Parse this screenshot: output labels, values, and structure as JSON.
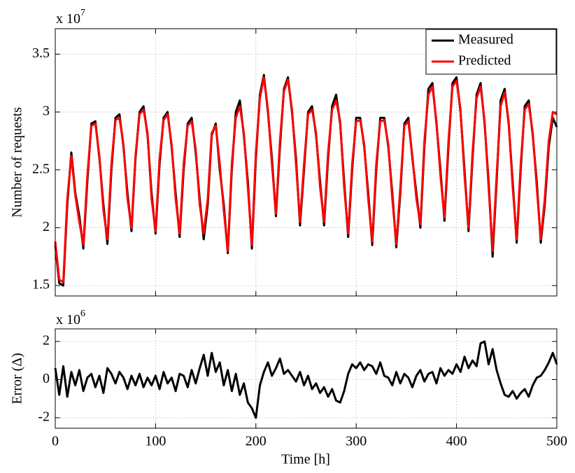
{
  "chart_data": [
    {
      "type": "line",
      "y_label": "Number of requests",
      "y_multiplier": {
        "base": "x 10",
        "exponent": "7"
      },
      "x": [
        0,
        4,
        8,
        12,
        16,
        20,
        24,
        28,
        32,
        36,
        40,
        44,
        48,
        52,
        56,
        60,
        64,
        68,
        72,
        76,
        80,
        84,
        88,
        92,
        96,
        100,
        104,
        108,
        112,
        116,
        120,
        124,
        128,
        132,
        136,
        140,
        144,
        148,
        152,
        156,
        160,
        164,
        168,
        172,
        176,
        180,
        184,
        188,
        192,
        196,
        200,
        204,
        208,
        212,
        216,
        220,
        224,
        228,
        232,
        236,
        240,
        244,
        248,
        252,
        256,
        260,
        264,
        268,
        272,
        276,
        280,
        284,
        288,
        292,
        296,
        300,
        304,
        308,
        312,
        316,
        320,
        324,
        328,
        332,
        336,
        340,
        344,
        348,
        352,
        356,
        360,
        364,
        368,
        372,
        376,
        380,
        384,
        388,
        392,
        396,
        400,
        404,
        408,
        412,
        416,
        420,
        424,
        428,
        432,
        436,
        440,
        444,
        448,
        452,
        456,
        460,
        464,
        468,
        472,
        476,
        480,
        484,
        488,
        492,
        496,
        500
      ],
      "series": [
        {
          "name": "Measured",
          "color": "#000000",
          "values": [
            1.85,
            1.52,
            1.5,
            2.2,
            2.65,
            2.3,
            2.1,
            1.82,
            2.4,
            2.9,
            2.92,
            2.6,
            2.2,
            1.86,
            2.5,
            2.95,
            2.98,
            2.7,
            2.3,
            1.97,
            2.6,
            3.0,
            3.05,
            2.8,
            2.3,
            1.95,
            2.55,
            2.95,
            3.0,
            2.7,
            2.3,
            1.92,
            2.5,
            2.9,
            2.95,
            2.65,
            2.25,
            1.9,
            2.2,
            2.8,
            2.9,
            2.5,
            2.2,
            1.78,
            2.5,
            3.0,
            3.1,
            2.8,
            2.4,
            1.82,
            2.6,
            3.15,
            3.32,
            3.0,
            2.6,
            2.1,
            2.7,
            3.2,
            3.3,
            3.0,
            2.6,
            2.02,
            2.5,
            3.0,
            3.05,
            2.8,
            2.4,
            2.02,
            2.6,
            3.05,
            3.15,
            2.9,
            2.4,
            1.92,
            2.5,
            2.95,
            2.95,
            2.7,
            2.3,
            1.85,
            2.5,
            2.95,
            2.95,
            2.7,
            2.3,
            1.83,
            2.3,
            2.9,
            2.95,
            2.6,
            2.3,
            2.0,
            2.7,
            3.2,
            3.25,
            2.9,
            2.5,
            2.06,
            2.7,
            3.25,
            3.3,
            3.0,
            2.5,
            1.97,
            2.6,
            3.15,
            3.25,
            2.9,
            2.4,
            1.75,
            2.4,
            3.1,
            3.2,
            2.9,
            2.4,
            1.87,
            2.5,
            3.05,
            3.1,
            2.8,
            2.4,
            1.87,
            2.2,
            2.7,
            2.95,
            2.87
          ]
        },
        {
          "name": "Predicted",
          "color": "#ff0000",
          "values": [
            1.88,
            1.55,
            1.53,
            2.25,
            2.62,
            2.28,
            2.05,
            1.85,
            2.45,
            2.88,
            2.9,
            2.62,
            2.15,
            1.9,
            2.55,
            2.93,
            2.95,
            2.72,
            2.25,
            2.0,
            2.62,
            2.98,
            3.02,
            2.82,
            2.25,
            1.97,
            2.6,
            2.93,
            2.98,
            2.72,
            2.25,
            1.95,
            2.55,
            2.88,
            2.92,
            2.68,
            2.2,
            1.95,
            2.25,
            2.82,
            2.88,
            2.55,
            2.15,
            1.8,
            2.55,
            2.95,
            3.05,
            2.82,
            2.35,
            1.85,
            2.65,
            3.12,
            3.3,
            3.02,
            2.55,
            2.12,
            2.75,
            3.18,
            3.28,
            3.02,
            2.55,
            2.05,
            2.55,
            2.98,
            3.02,
            2.82,
            2.35,
            2.05,
            2.65,
            3.02,
            3.1,
            2.92,
            2.35,
            1.95,
            2.55,
            2.92,
            2.93,
            2.72,
            2.25,
            1.88,
            2.55,
            2.92,
            2.93,
            2.72,
            2.25,
            1.86,
            2.35,
            2.88,
            2.92,
            2.62,
            2.25,
            2.03,
            2.75,
            3.15,
            3.22,
            2.92,
            2.45,
            2.09,
            2.75,
            3.22,
            3.27,
            3.02,
            2.45,
            2.0,
            2.65,
            3.12,
            3.22,
            2.92,
            2.35,
            1.8,
            2.45,
            3.05,
            3.17,
            2.92,
            2.35,
            1.9,
            2.55,
            3.02,
            3.07,
            2.82,
            2.35,
            1.9,
            2.25,
            2.75,
            3.0,
            2.98
          ]
        }
      ],
      "xlim": [
        0,
        500
      ],
      "xticks": [
        0,
        100,
        200,
        300,
        400,
        500
      ],
      "ylim": [
        1.41,
        3.72
      ],
      "yticks": [
        1.5,
        2,
        2.5,
        3,
        3.5
      ],
      "grid": true,
      "legend": "upper right"
    },
    {
      "type": "line",
      "x_label": "Time [h]",
      "y_label": "Error (Δ)",
      "y_multiplier": {
        "base": "x 10",
        "exponent": "6"
      },
      "x": [
        0,
        4,
        8,
        12,
        16,
        20,
        24,
        28,
        32,
        36,
        40,
        44,
        48,
        52,
        56,
        60,
        64,
        68,
        72,
        76,
        80,
        84,
        88,
        92,
        96,
        100,
        104,
        108,
        112,
        116,
        120,
        124,
        128,
        132,
        136,
        140,
        144,
        148,
        152,
        156,
        160,
        164,
        168,
        172,
        176,
        180,
        184,
        188,
        192,
        196,
        200,
        204,
        208,
        212,
        216,
        220,
        224,
        228,
        232,
        236,
        240,
        244,
        248,
        252,
        256,
        260,
        264,
        268,
        272,
        276,
        280,
        284,
        288,
        292,
        296,
        300,
        304,
        308,
        312,
        316,
        320,
        324,
        328,
        332,
        336,
        340,
        344,
        348,
        352,
        356,
        360,
        364,
        368,
        372,
        376,
        380,
        384,
        388,
        392,
        396,
        400,
        404,
        408,
        412,
        416,
        420,
        424,
        428,
        432,
        436,
        440,
        444,
        448,
        452,
        456,
        460,
        464,
        468,
        472,
        476,
        480,
        484,
        488,
        492,
        496,
        500
      ],
      "series": [
        {
          "name": "Error",
          "color": "#000000",
          "values": [
            0.6,
            -0.8,
            0.7,
            -0.9,
            0.4,
            -0.3,
            0.5,
            -0.6,
            0.1,
            0.3,
            -0.4,
            0.2,
            -0.7,
            0.6,
            0.3,
            -0.2,
            0.4,
            0.1,
            -0.5,
            0.2,
            -0.3,
            0.3,
            -0.4,
            0.1,
            -0.3,
            0.2,
            -0.5,
            0.4,
            -0.2,
            0.1,
            -0.6,
            0.3,
            0.2,
            -0.4,
            0.5,
            -0.2,
            0.6,
            1.3,
            0.2,
            1.4,
            0.4,
            0.9,
            -0.3,
            0.5,
            -0.6,
            0.3,
            -0.8,
            -0.2,
            -1.2,
            -1.5,
            -2.0,
            -0.3,
            0.4,
            0.9,
            0.2,
            0.6,
            1.1,
            0.3,
            0.5,
            0.2,
            -0.1,
            0.4,
            -0.3,
            0.2,
            -0.5,
            -0.2,
            -0.7,
            -0.4,
            -0.9,
            -0.5,
            -1.1,
            -1.2,
            -0.6,
            0.3,
            0.8,
            0.6,
            0.9,
            0.5,
            0.8,
            0.7,
            0.3,
            0.9,
            0.2,
            0.1,
            -0.3,
            0.4,
            -0.2,
            0.3,
            0.1,
            -0.4,
            0.2,
            0.5,
            -0.1,
            0.3,
            0.4,
            -0.2,
            0.6,
            0.2,
            0.5,
            0.3,
            0.8,
            0.4,
            1.2,
            0.6,
            1.0,
            0.7,
            1.9,
            2.0,
            0.8,
            1.6,
            0.5,
            -0.2,
            -0.8,
            -0.9,
            -0.6,
            -1.0,
            -0.7,
            -0.5,
            -0.9,
            -0.3,
            0.1,
            0.2,
            0.5,
            0.9,
            1.4,
            0.8
          ]
        }
      ],
      "xlim": [
        0,
        500
      ],
      "xticks": [
        0,
        100,
        200,
        300,
        400,
        500
      ],
      "ylim": [
        -2.55,
        2.66
      ],
      "yticks": [
        -2,
        0,
        2
      ],
      "grid": true
    }
  ]
}
